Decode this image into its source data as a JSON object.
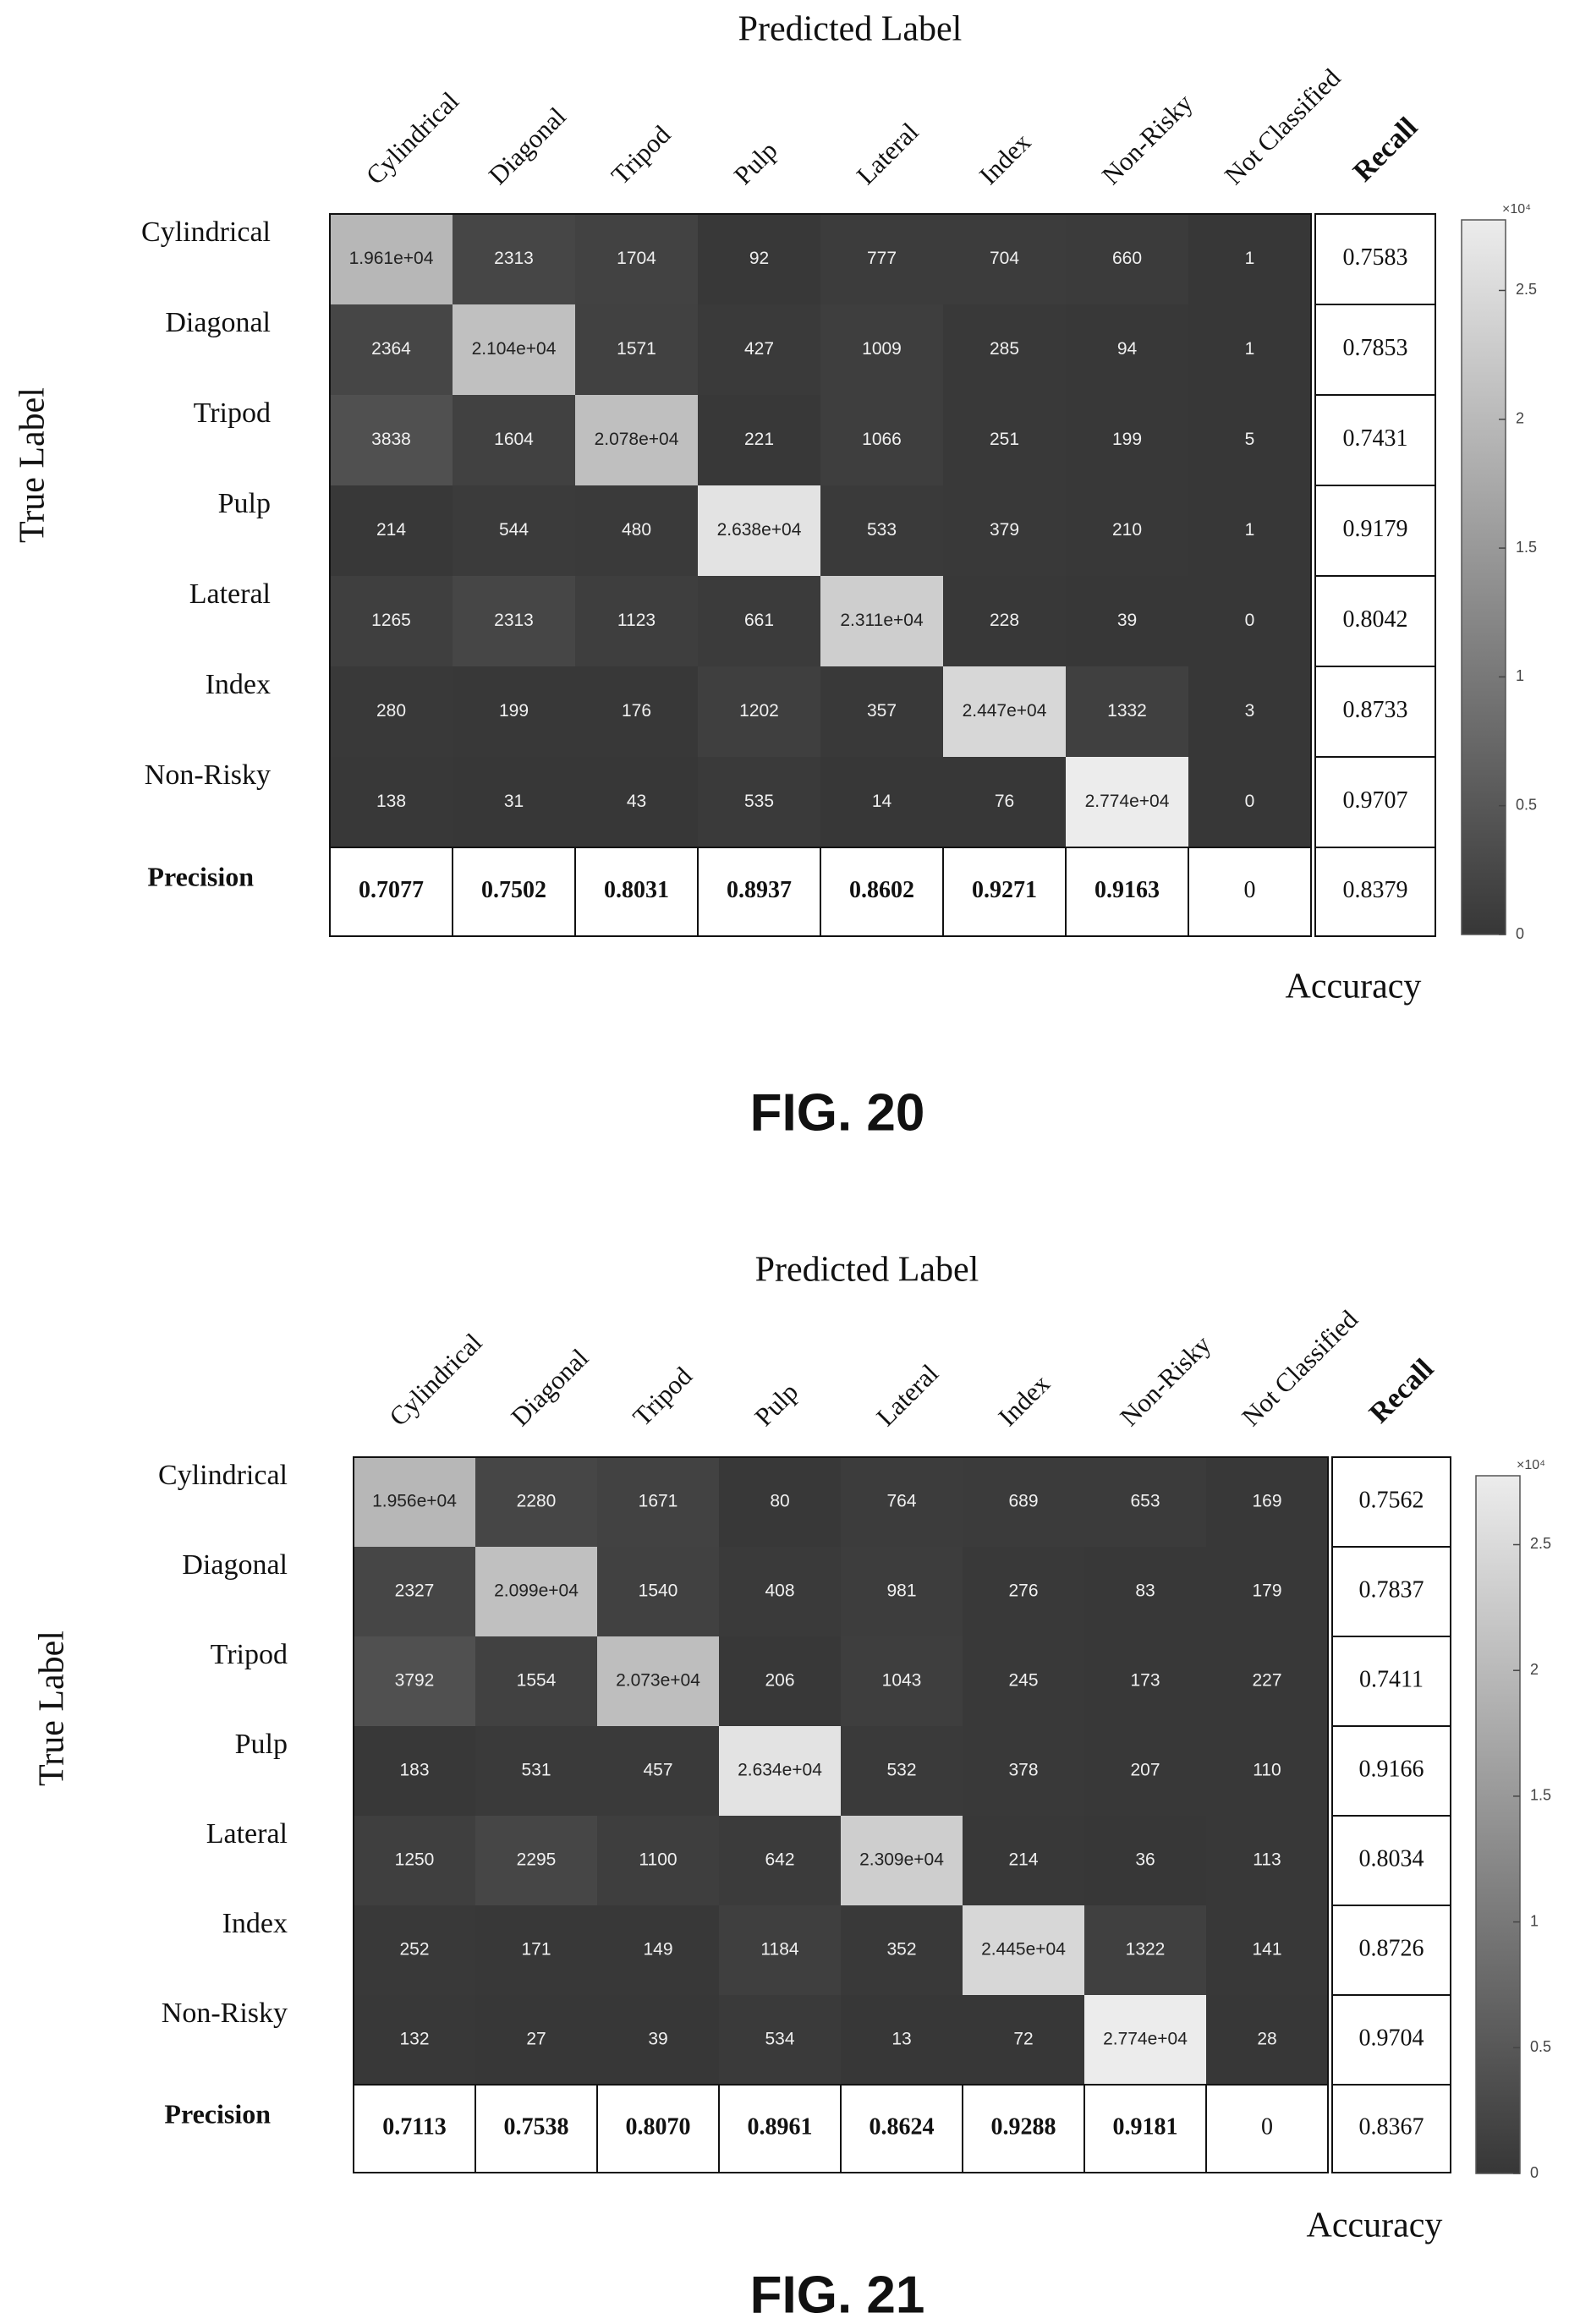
{
  "figures": [
    {
      "caption": "FIG. 20",
      "x_axis_title": "Predicted Label",
      "y_axis_title": "True Label",
      "recall_header": "Recall",
      "precision_header": "Precision",
      "accuracy_label": "Accuracy",
      "colorbar_exponent": "×10⁴",
      "colorbar_ticks": [
        "0",
        "0.5",
        "1",
        "1.5",
        "2",
        "2.5"
      ]
    },
    {
      "caption": "FIG. 21",
      "x_axis_title": "Predicted Label",
      "y_axis_title": "True Label",
      "recall_header": "Recall",
      "precision_header": "Precision",
      "accuracy_label": "Accuracy",
      "colorbar_exponent": "×10⁴",
      "colorbar_ticks": [
        "0",
        "0.5",
        "1",
        "1.5",
        "2",
        "2.5"
      ]
    }
  ],
  "chart_data": [
    {
      "type": "heatmap",
      "title": "",
      "xlabel": "Predicted Label",
      "ylabel": "True Label",
      "columns": [
        "Cylindrical",
        "Diagonal",
        "Tripod",
        "Pulp",
        "Lateral",
        "Index",
        "Non-Risky",
        "Not Classified"
      ],
      "rows": [
        "Cylindrical",
        "Diagonal",
        "Tripod",
        "Pulp",
        "Lateral",
        "Index",
        "Non-Risky"
      ],
      "values": [
        [
          19610,
          2313,
          1704,
          92,
          777,
          704,
          660,
          1
        ],
        [
          2364,
          21040,
          1571,
          427,
          1009,
          285,
          94,
          1
        ],
        [
          3838,
          1604,
          20780,
          221,
          1066,
          251,
          199,
          5
        ],
        [
          214,
          544,
          480,
          26380,
          533,
          379,
          210,
          1
        ],
        [
          1265,
          2313,
          1123,
          661,
          23110,
          228,
          39,
          0
        ],
        [
          280,
          199,
          176,
          1202,
          357,
          24470,
          1332,
          3
        ],
        [
          138,
          31,
          43,
          535,
          14,
          76,
          27740,
          0
        ]
      ],
      "cell_labels": [
        [
          "1.961e+04",
          "2313",
          "1704",
          "92",
          "777",
          "704",
          "660",
          "1"
        ],
        [
          "2364",
          "2.104e+04",
          "1571",
          "427",
          "1009",
          "285",
          "94",
          "1"
        ],
        [
          "3838",
          "1604",
          "2.078e+04",
          "221",
          "1066",
          "251",
          "199",
          "5"
        ],
        [
          "214",
          "544",
          "480",
          "2.638e+04",
          "533",
          "379",
          "210",
          "1"
        ],
        [
          "1265",
          "2313",
          "1123",
          "661",
          "2.311e+04",
          "228",
          "39",
          "0"
        ],
        [
          "280",
          "199",
          "176",
          "1202",
          "357",
          "2.447e+04",
          "1332",
          "3"
        ],
        [
          "138",
          "31",
          "43",
          "535",
          "14",
          "76",
          "2.774e+04",
          "0"
        ]
      ],
      "recall": [
        "0.7583",
        "0.7853",
        "0.7431",
        "0.9179",
        "0.8042",
        "0.8733",
        "0.9707"
      ],
      "precision": [
        "0.7077",
        "0.7502",
        "0.8031",
        "0.8937",
        "0.8602",
        "0.9271",
        "0.9163",
        "0"
      ],
      "accuracy": "0.8379",
      "colorbar_range": [
        0,
        27740
      ],
      "colorscale": [
        "#373737",
        "#ececec"
      ]
    },
    {
      "type": "heatmap",
      "title": "",
      "xlabel": "Predicted Label",
      "ylabel": "True Label",
      "columns": [
        "Cylindrical",
        "Diagonal",
        "Tripod",
        "Pulp",
        "Lateral",
        "Index",
        "Non-Risky",
        "Not Classified"
      ],
      "rows": [
        "Cylindrical",
        "Diagonal",
        "Tripod",
        "Pulp",
        "Lateral",
        "Index",
        "Non-Risky"
      ],
      "values": [
        [
          19560,
          2280,
          1671,
          80,
          764,
          689,
          653,
          169
        ],
        [
          2327,
          20990,
          1540,
          408,
          981,
          276,
          83,
          179
        ],
        [
          3792,
          1554,
          20730,
          206,
          1043,
          245,
          173,
          227
        ],
        [
          183,
          531,
          457,
          26340,
          532,
          378,
          207,
          110
        ],
        [
          1250,
          2295,
          1100,
          642,
          23090,
          214,
          36,
          113
        ],
        [
          252,
          171,
          149,
          1184,
          352,
          24450,
          1322,
          141
        ],
        [
          132,
          27,
          39,
          534,
          13,
          72,
          27740,
          28
        ]
      ],
      "cell_labels": [
        [
          "1.956e+04",
          "2280",
          "1671",
          "80",
          "764",
          "689",
          "653",
          "169"
        ],
        [
          "2327",
          "2.099e+04",
          "1540",
          "408",
          "981",
          "276",
          "83",
          "179"
        ],
        [
          "3792",
          "1554",
          "2.073e+04",
          "206",
          "1043",
          "245",
          "173",
          "227"
        ],
        [
          "183",
          "531",
          "457",
          "2.634e+04",
          "532",
          "378",
          "207",
          "110"
        ],
        [
          "1250",
          "2295",
          "1100",
          "642",
          "2.309e+04",
          "214",
          "36",
          "113"
        ],
        [
          "252",
          "171",
          "149",
          "1184",
          "352",
          "2.445e+04",
          "1322",
          "141"
        ],
        [
          "132",
          "27",
          "39",
          "534",
          "13",
          "72",
          "2.774e+04",
          "28"
        ]
      ],
      "recall": [
        "0.7562",
        "0.7837",
        "0.7411",
        "0.9166",
        "0.8034",
        "0.8726",
        "0.9704"
      ],
      "precision": [
        "0.7113",
        "0.7538",
        "0.8070",
        "0.8961",
        "0.8624",
        "0.9288",
        "0.9181",
        "0"
      ],
      "accuracy": "0.8367",
      "colorbar_range": [
        0,
        27740
      ],
      "colorscale": [
        "#373737",
        "#ececec"
      ]
    }
  ]
}
